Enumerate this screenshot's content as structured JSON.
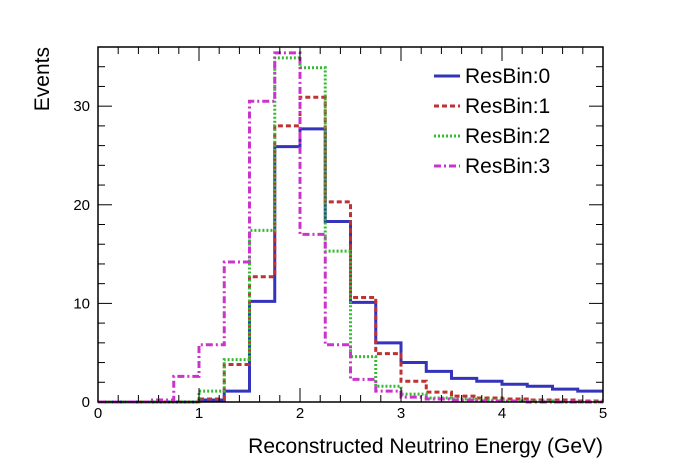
{
  "chart_data": {
    "type": "histogram-step",
    "xlabel": "Reconstructed Neutrino Energy (GeV)",
    "ylabel": "Events",
    "xlim": [
      0,
      5
    ],
    "ylim": [
      0,
      36
    ],
    "x_ticks": [
      "0",
      "1",
      "2",
      "3",
      "4",
      "5"
    ],
    "y_ticks": [
      "0",
      "10",
      "20",
      "30"
    ],
    "bin_edges": [
      0,
      0.25,
      0.5,
      0.75,
      1.0,
      1.25,
      1.5,
      1.75,
      2.0,
      2.25,
      2.5,
      2.75,
      3.0,
      3.25,
      3.5,
      3.75,
      4.0,
      4.25,
      4.5,
      4.75,
      5.0
    ],
    "grid": false,
    "legend_position": "top-right",
    "series": [
      {
        "name": "ResBin:0",
        "color": "#3333bb",
        "dash": "solid",
        "values": [
          0,
          0,
          0,
          0,
          0.2,
          1.1,
          10.2,
          25.9,
          27.7,
          18.3,
          10.1,
          6.0,
          4.0,
          3.1,
          2.4,
          2.1,
          1.8,
          1.6,
          1.3,
          1.1
        ]
      },
      {
        "name": "ResBin:1",
        "color": "#bb3333",
        "dash": "dashed",
        "values": [
          0,
          0,
          0,
          0,
          0.3,
          3.8,
          12.7,
          28.0,
          30.9,
          20.3,
          10.6,
          4.9,
          2.1,
          1.0,
          0.6,
          0.4,
          0.3,
          0.2,
          0.2,
          0.1
        ]
      },
      {
        "name": "ResBin:2",
        "color": "#33bb33",
        "dash": "dotted",
        "values": [
          0,
          0,
          0,
          0,
          1.1,
          4.3,
          17.4,
          34.9,
          33.9,
          15.3,
          4.6,
          1.6,
          0.8,
          0.4,
          0.3,
          0.2,
          0.1,
          0.1,
          0,
          0
        ]
      },
      {
        "name": "ResBin:3",
        "color": "#cc33cc",
        "dash": "dashdot",
        "values": [
          0,
          0,
          0.2,
          2.6,
          5.8,
          14.2,
          30.5,
          35.4,
          17.0,
          5.8,
          2.3,
          1.1,
          0.5,
          0.3,
          0.2,
          0.1,
          0.1,
          0,
          0,
          0
        ]
      }
    ]
  }
}
